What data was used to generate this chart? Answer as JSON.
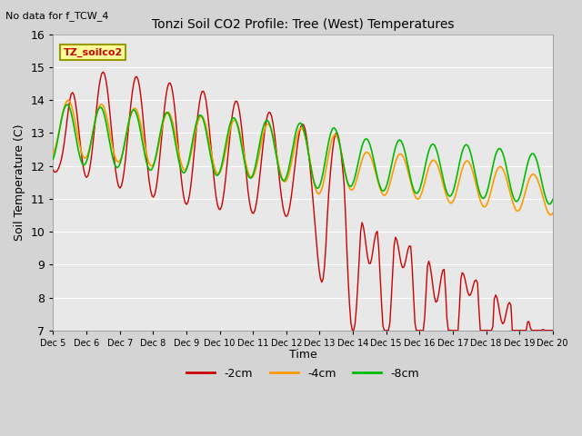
{
  "title": "Tonzi Soil CO2 Profile: Tree (West) Temperatures",
  "subtitle": "No data for f_TCW_4",
  "ylabel": "Soil Temperature (C)",
  "xlabel": "Time",
  "ylim": [
    7.0,
    16.0
  ],
  "yticks": [
    7.0,
    8.0,
    9.0,
    10.0,
    11.0,
    12.0,
    13.0,
    14.0,
    15.0,
    16.0
  ],
  "xtick_labels": [
    "Dec 5",
    "Dec 6",
    "Dec 7",
    "Dec 8",
    "Dec 9",
    "Dec 10",
    "Dec 11",
    "Dec 12",
    "Dec 13",
    "Dec 14",
    "Dec 15",
    "Dec 16",
    "Dec 17",
    "Dec 18",
    "Dec 19",
    "Dec 20"
  ],
  "legend_label": "TZ_soilco2",
  "line_colors": {
    "2cm": "#cc0000",
    "4cm": "#ff9900",
    "8cm": "#00bb00"
  },
  "legend_entries": [
    "-2cm",
    "-4cm",
    "-8cm"
  ],
  "fig_facecolor": "#d4d4d4",
  "axes_facecolor": "#e8e8e8",
  "grid_color": "#ffffff",
  "figsize": [
    6.4,
    4.8
  ],
  "dpi": 100
}
